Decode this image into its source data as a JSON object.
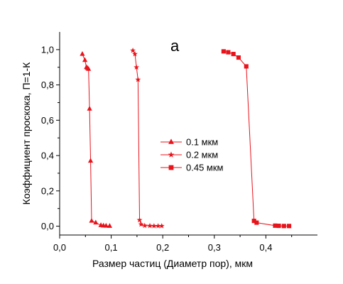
{
  "chart_data": {
    "type": "line",
    "panel_label": "a",
    "xlabel": "Размер частиц (Диаметр пор), мкм",
    "ylabel": "Коэффициент проскока, П=1-К",
    "xlim": [
      0.0,
      0.5
    ],
    "ylim": [
      -0.05,
      1.1
    ],
    "x_ticks": [
      0.0,
      0.1,
      0.2,
      0.3,
      0.4
    ],
    "x_tick_labels": [
      "0,0",
      "0,1",
      "0,2",
      "0,3",
      "0,4"
    ],
    "y_ticks": [
      0.0,
      0.2,
      0.4,
      0.6,
      0.8,
      1.0
    ],
    "y_tick_labels": [
      "0,0",
      "0,2",
      "0,4",
      "0,6",
      "0,8",
      "1,0"
    ],
    "grid": false,
    "legend_position": "center",
    "color": "#e8141c",
    "series": [
      {
        "name": "0.1 мкм",
        "marker": "triangle",
        "x": [
          0.044,
          0.049,
          0.052,
          0.054,
          0.056,
          0.058,
          0.06,
          0.062,
          0.07,
          0.08,
          0.085,
          0.09,
          0.097
        ],
        "y": [
          0.975,
          0.94,
          0.9,
          0.895,
          0.89,
          0.665,
          0.37,
          0.03,
          0.02,
          0.005,
          0.003,
          0.002,
          0.001
        ]
      },
      {
        "name": "0.2 мкм",
        "marker": "star",
        "x": [
          0.142,
          0.146,
          0.149,
          0.152,
          0.155,
          0.158,
          0.165,
          0.175,
          0.183,
          0.191,
          0.198
        ],
        "y": [
          0.995,
          0.975,
          0.9,
          0.83,
          0.035,
          0.01,
          0.003,
          0.002,
          0.001,
          0.001,
          0.001
        ]
      },
      {
        "name": "0.45 мкм",
        "marker": "square",
        "x": [
          0.318,
          0.327,
          0.337,
          0.347,
          0.362,
          0.377,
          0.382,
          0.418,
          0.425,
          0.435,
          0.445
        ],
        "y": [
          0.99,
          0.985,
          0.975,
          0.955,
          0.905,
          0.03,
          0.02,
          0.003,
          0.002,
          0.001,
          0.001
        ]
      }
    ]
  }
}
